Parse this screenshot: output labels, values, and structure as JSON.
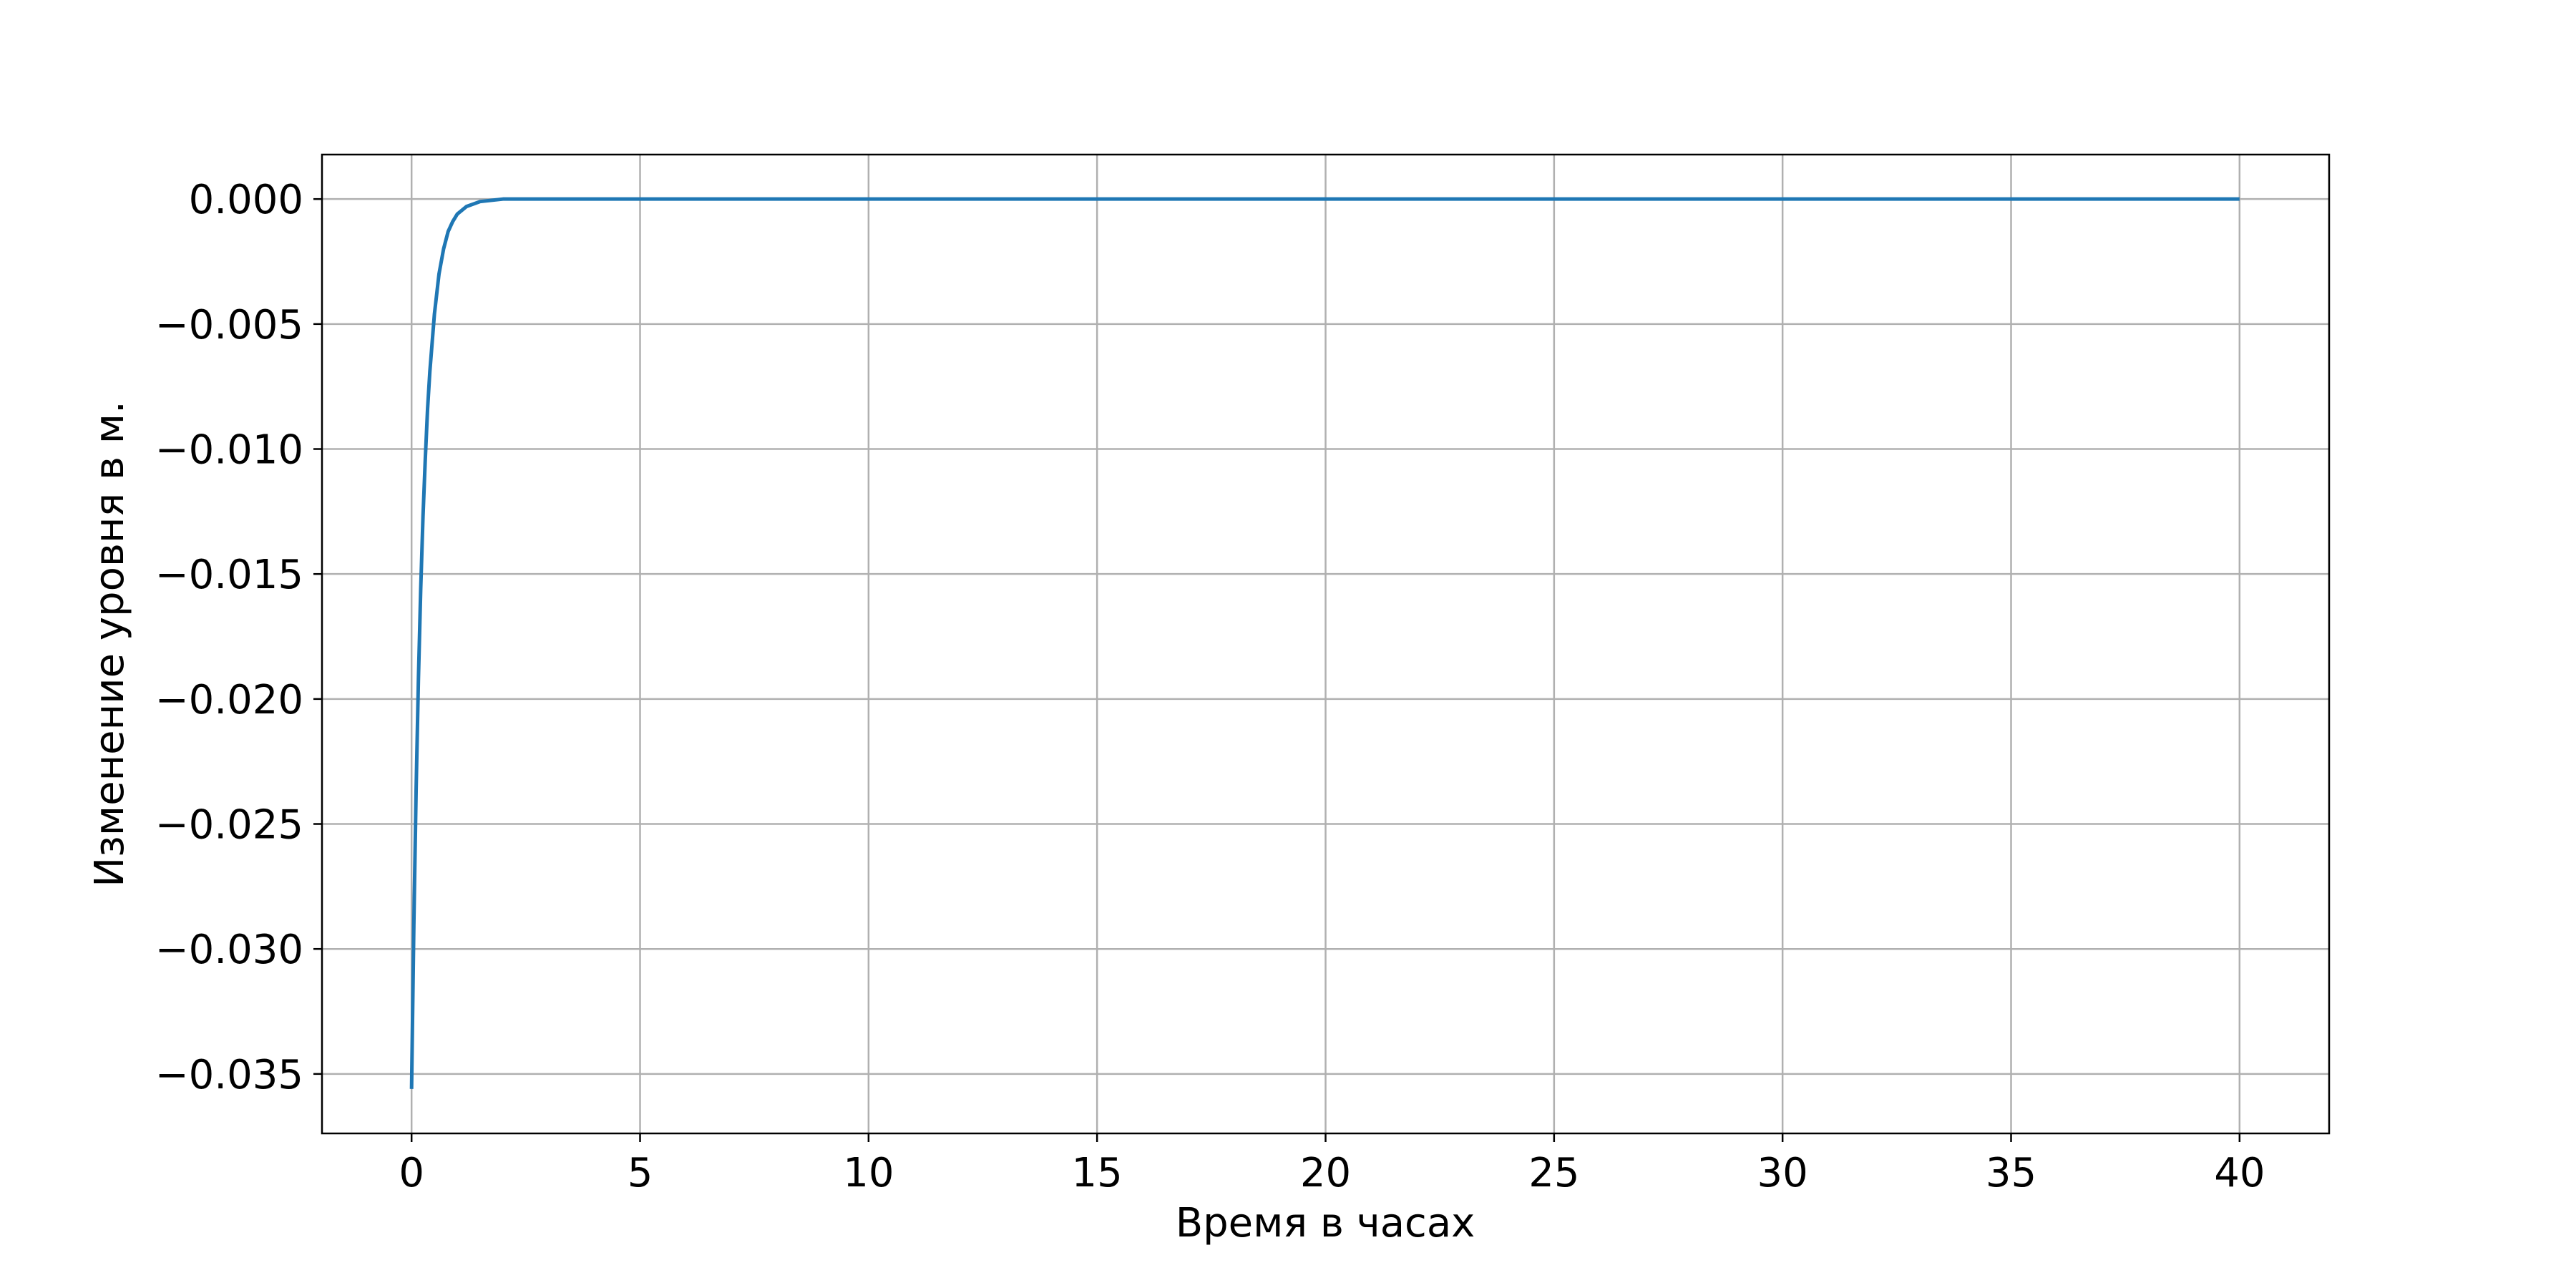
{
  "chart_data": {
    "type": "line",
    "title": "",
    "xlabel": "Время в часах",
    "ylabel": "Изменение уровня в м.",
    "xlim": [
      -1.96,
      41.96
    ],
    "ylim": [
      -0.03738,
      0.00178
    ],
    "x_ticks": [
      0,
      5,
      10,
      15,
      20,
      25,
      30,
      35,
      40
    ],
    "x_tick_labels": [
      "0",
      "5",
      "10",
      "15",
      "20",
      "25",
      "30",
      "35",
      "40"
    ],
    "y_ticks": [
      0.0,
      -0.005,
      -0.01,
      -0.015,
      -0.02,
      -0.025,
      -0.03,
      -0.035
    ],
    "y_tick_labels": [
      "0.000",
      "−0.005",
      "−0.010",
      "−0.015",
      "−0.020",
      "−0.025",
      "−0.030",
      "−0.035"
    ],
    "grid": true,
    "legend": "none",
    "colors": {
      "line": "#1f77b4",
      "grid": "#b0b0b0",
      "axes": "#000000"
    },
    "series": [
      {
        "x": [
          0,
          0.05,
          0.1,
          0.15,
          0.2,
          0.25,
          0.3,
          0.35,
          0.4,
          0.5,
          0.6,
          0.7,
          0.8,
          0.9,
          1.0,
          1.2,
          1.5,
          2.0,
          3.0,
          5.0,
          10.0,
          15.0,
          20.0,
          25.0,
          30.0,
          35.0,
          40.0
        ],
        "values": [
          -0.0356,
          -0.029,
          -0.0236,
          -0.0192,
          -0.0156,
          -0.0127,
          -0.0104,
          -0.0084,
          -0.0069,
          -0.0046,
          -0.003,
          -0.002,
          -0.0013,
          -0.0009,
          -0.0006,
          -0.0003,
          -0.0001,
          0.0,
          0.0,
          0.0,
          0.0,
          0.0,
          0.0,
          0.0,
          0.0,
          0.0,
          0.0
        ]
      }
    ]
  }
}
